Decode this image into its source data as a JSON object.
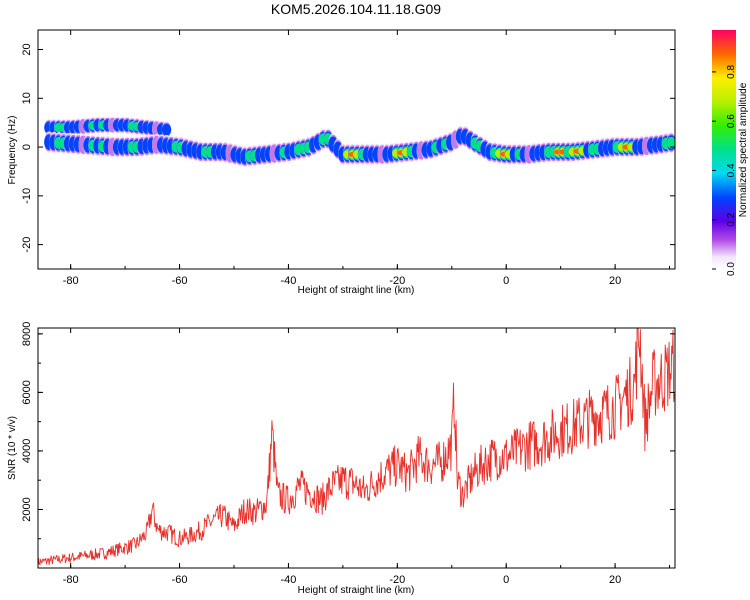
{
  "chart_data": [
    {
      "type": "heatmap",
      "title": "KOM5.2026.104.11.18.G09",
      "xlabel": "Height of straight line (km)",
      "ylabel": "Frequency (Hz)",
      "xlim": [
        -86,
        31
      ],
      "ylim": [
        -25,
        24
      ],
      "xticks": [
        -80,
        -60,
        -40,
        -20,
        0,
        20
      ],
      "yticks": [
        -20,
        -10,
        0,
        10,
        20
      ],
      "colorbar": {
        "label": "Normalized spectral amplitude",
        "range": [
          0,
          0.97
        ],
        "ticks": [
          0.0,
          0.2,
          0.4,
          0.6,
          0.8
        ]
      },
      "ridges": [
        {
          "name": "upper",
          "x": [
            -84,
            -80,
            -75,
            -70,
            -66,
            -62
          ],
          "y": [
            4,
            4,
            4.5,
            4.5,
            4,
            3.5
          ]
        },
        {
          "name": "main",
          "x": [
            -84,
            -78,
            -72,
            -68,
            -64,
            -60,
            -56,
            -52,
            -48,
            -44,
            -40,
            -36,
            -33,
            -30,
            -26,
            -22,
            -18,
            -14,
            -10,
            -8,
            -6,
            -3,
            0,
            4,
            8,
            12,
            16,
            20,
            24,
            28,
            31
          ],
          "y": [
            1,
            0.5,
            0,
            0,
            0.5,
            0,
            -1,
            -1,
            -2,
            -1.5,
            -1,
            0,
            2,
            -1.5,
            -1.5,
            -1.5,
            -1,
            -0.5,
            1,
            2.5,
            1,
            -1,
            -1.5,
            -1.5,
            -1,
            -1,
            -0.5,
            0,
            0,
            0.5,
            1
          ]
        }
      ],
      "peaks": [
        {
          "x": -28,
          "y": -1.5,
          "amp": 0.95
        },
        {
          "x": -19,
          "y": -1,
          "amp": 0.97
        },
        {
          "x": -0.5,
          "y": -1.5,
          "amp": 0.95
        },
        {
          "x": 10,
          "y": -1,
          "amp": 0.97
        },
        {
          "x": 13,
          "y": -1,
          "amp": 0.95
        },
        {
          "x": 22,
          "y": 0,
          "amp": 0.9
        },
        {
          "x": -37,
          "y": 0.5,
          "amp": 0.7
        },
        {
          "x": -60,
          "y": 0,
          "amp": 0.55
        }
      ]
    },
    {
      "type": "line",
      "xlabel": "Height of straight line (km)",
      "ylabel": "SNR (10 * v/v)",
      "xlim": [
        -86,
        31
      ],
      "ylim": [
        0,
        8200
      ],
      "xticks": [
        -80,
        -60,
        -40,
        -20,
        0,
        20
      ],
      "yticks": [
        2000,
        4000,
        6000,
        8000
      ],
      "color": "#e8302a",
      "series": [
        {
          "name": "SNR",
          "x": [
            -86,
            -82,
            -78,
            -74,
            -70,
            -68,
            -66,
            -65,
            -64,
            -62,
            -60,
            -58,
            -56,
            -54,
            -52,
            -50,
            -48,
            -46,
            -44,
            -43,
            -42,
            -40,
            -38,
            -36,
            -34,
            -32,
            -30,
            -28,
            -26,
            -24,
            -22,
            -20,
            -18,
            -16,
            -14,
            -12,
            -10,
            -9.5,
            -9,
            -8,
            -6,
            -4,
            -2,
            0,
            2,
            4,
            6,
            8,
            10,
            12,
            14,
            16,
            18,
            20,
            22,
            23.5,
            24.5,
            25.5,
            27,
            29,
            31
          ],
          "y": [
            200,
            300,
            400,
            500,
            700,
            800,
            1200,
            2000,
            1300,
            1200,
            1000,
            1100,
            1300,
            1600,
            1800,
            1400,
            2000,
            1900,
            2200,
            4600,
            2500,
            2300,
            2800,
            2600,
            2300,
            2800,
            3000,
            2900,
            2600,
            3000,
            3300,
            3500,
            3200,
            3800,
            3500,
            3600,
            4200,
            6000,
            3000,
            2500,
            3200,
            3600,
            3800,
            3800,
            4000,
            4200,
            4300,
            4500,
            4700,
            4800,
            5000,
            5200,
            5300,
            5500,
            5900,
            6200,
            8200,
            4900,
            6300,
            6500,
            7000
          ]
        }
      ]
    }
  ]
}
